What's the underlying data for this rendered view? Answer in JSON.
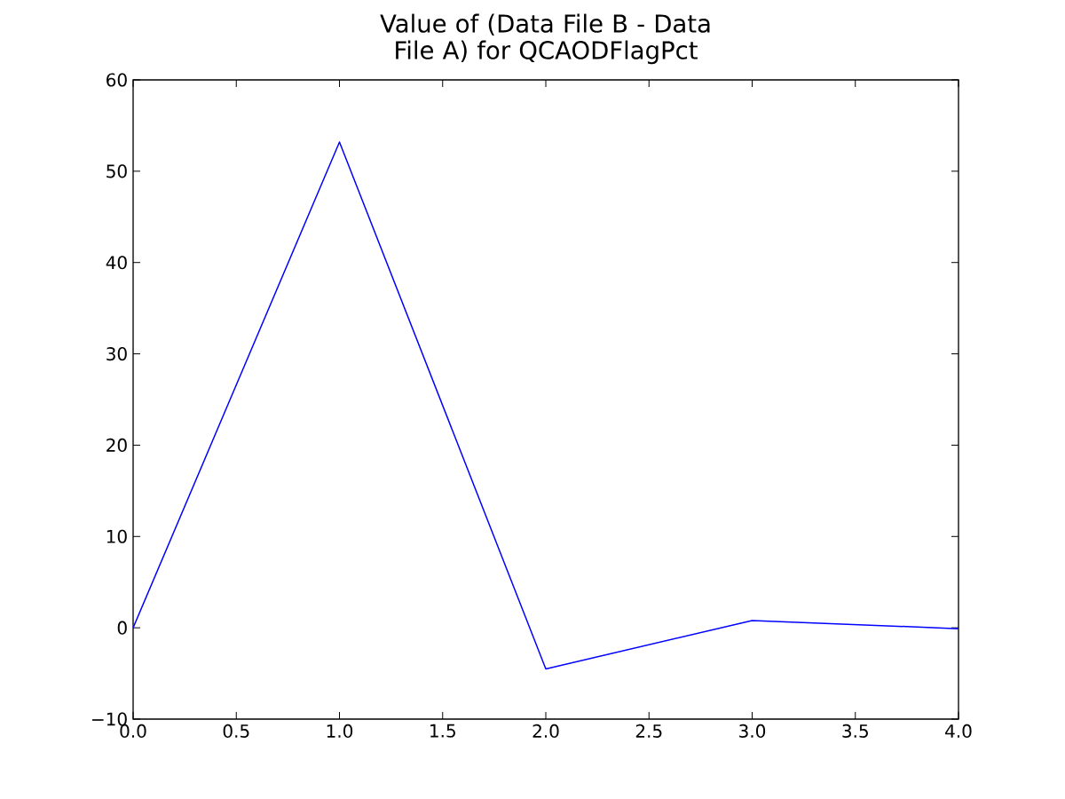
{
  "chart_data": {
    "type": "line",
    "title": "Value of (Data File B - Data File A) for QCAODFlagPct",
    "x": [
      0,
      1,
      2,
      3,
      4
    ],
    "values": [
      0,
      53.2,
      -4.5,
      0.8,
      -0.1
    ],
    "color": "#0000ff",
    "xlim": [
      0,
      4
    ],
    "ylim": [
      -10,
      60
    ],
    "xticks": [
      {
        "value": 0,
        "label": "0.0"
      },
      {
        "value": 0.5,
        "label": "0.5"
      },
      {
        "value": 1,
        "label": "1.0"
      },
      {
        "value": 1.5,
        "label": "1.5"
      },
      {
        "value": 2,
        "label": "2.0"
      },
      {
        "value": 2.5,
        "label": "2.5"
      },
      {
        "value": 3,
        "label": "3.0"
      },
      {
        "value": 3.5,
        "label": "3.5"
      },
      {
        "value": 4,
        "label": "4.0"
      }
    ],
    "yticks": [
      {
        "value": -10,
        "label": "−10"
      },
      0,
      10,
      20,
      30,
      40,
      50,
      60
    ]
  }
}
